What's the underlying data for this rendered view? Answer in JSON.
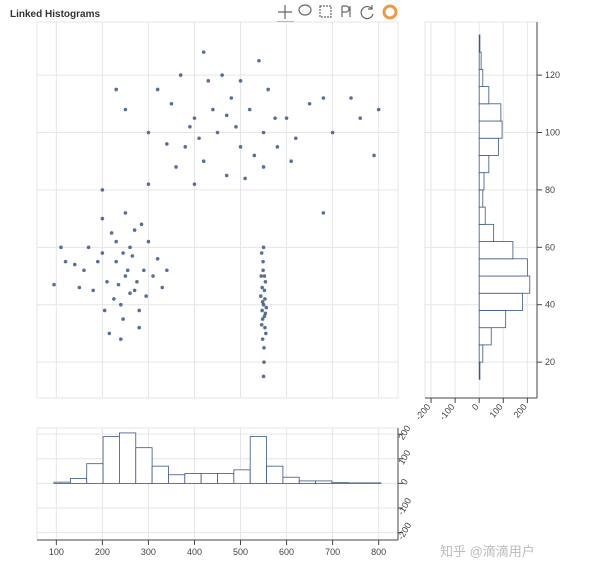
{
  "chart_data": [
    {
      "type": "scatter",
      "title": "Linked Histograms",
      "color": "#3a5785",
      "grid": true,
      "xlim": [
        58,
        842
      ],
      "ylim": [
        7.5,
        138.5
      ],
      "xticks": [
        100,
        200,
        300,
        400,
        500,
        600,
        700,
        800
      ],
      "yticks": [
        20,
        40,
        60,
        80,
        100,
        120
      ],
      "x": [
        250,
        230,
        270,
        210,
        290,
        260,
        240,
        200,
        280,
        220,
        310,
        180,
        255,
        235,
        265,
        245,
        300,
        190,
        275,
        225,
        160,
        330,
        215,
        285,
        250,
        205,
        295,
        170,
        320,
        240,
        140,
        260,
        230,
        270,
        150,
        200,
        280,
        245,
        340,
        120,
        95,
        110,
        200,
        550,
        548,
        552,
        545,
        555,
        547,
        553,
        549,
        551,
        546,
        554,
        550,
        548,
        552,
        544,
        556,
        549,
        551,
        547,
        553,
        550,
        546,
        554,
        548,
        552,
        450,
        400,
        500,
        350,
        550,
        420,
        480,
        380,
        600,
        430,
        520,
        300,
        470,
        560,
        410,
        650,
        490,
        360,
        530,
        440,
        700,
        320,
        580,
        460,
        390,
        620,
        510,
        340,
        470,
        550,
        250,
        680,
        230,
        420,
        760,
        800,
        790,
        300,
        540,
        500,
        370,
        610,
        740,
        400,
        575,
        680
      ],
      "values": [
        50,
        55,
        45,
        48,
        52,
        60,
        40,
        58,
        38,
        65,
        50,
        45,
        52,
        47,
        57,
        35,
        62,
        55,
        48,
        42,
        52,
        46,
        30,
        68,
        72,
        38,
        43,
        60,
        56,
        28,
        54,
        44,
        62,
        66,
        46,
        70,
        32,
        58,
        52,
        55,
        47,
        60,
        80,
        40,
        35,
        45,
        50,
        30,
        38,
        42,
        55,
        25,
        33,
        48,
        60,
        28,
        36,
        43,
        39,
        52,
        20,
        46,
        32,
        15,
        58,
        37,
        41,
        50,
        100,
        105,
        95,
        110,
        100,
        90,
        112,
        95,
        105,
        118,
        108,
        100,
        85,
        115,
        98,
        110,
        102,
        88,
        92,
        108,
        100,
        115,
        95,
        120,
        102,
        98,
        84,
        96,
        106,
        88,
        108,
        112,
        115,
        128,
        105,
        108,
        92,
        82,
        125,
        118,
        120,
        90,
        112,
        82,
        105,
        72
      ]
    },
    {
      "type": "histogram",
      "orientation": "vertical",
      "color": "#3a5785",
      "grid": true,
      "xlim": [
        58,
        842
      ],
      "ylim": [
        -230,
        225
      ],
      "xticks": [
        100,
        200,
        300,
        400,
        500,
        600,
        700,
        800
      ],
      "yticks": [
        -200,
        -100,
        0,
        100,
        200
      ],
      "bins": [
        95,
        130.5,
        166,
        201.5,
        237,
        272.5,
        308,
        343.5,
        379,
        414.5,
        450,
        485.5,
        521,
        556.5,
        592,
        627.5,
        663,
        698.5,
        734,
        769.5,
        805
      ],
      "values": [
        5,
        20,
        80,
        190,
        205,
        145,
        70,
        35,
        40,
        40,
        40,
        55,
        190,
        70,
        25,
        10,
        10,
        3,
        2,
        2
      ]
    },
    {
      "type": "histogram",
      "orientation": "horizontal",
      "color": "#3a5785",
      "grid": true,
      "xlim": [
        -225,
        240
      ],
      "ylim": [
        7.5,
        138.5
      ],
      "xticks": [
        -200,
        -100,
        0,
        100,
        200
      ],
      "yticks": [
        20,
        40,
        60,
        80,
        100,
        120
      ],
      "bins": [
        14,
        20,
        26,
        32,
        38,
        44,
        50,
        56,
        62,
        68,
        74,
        80,
        86,
        92,
        98,
        104,
        110,
        116,
        122,
        128,
        134
      ],
      "values": [
        3,
        15,
        50,
        110,
        180,
        210,
        200,
        140,
        60,
        25,
        15,
        20,
        40,
        80,
        95,
        90,
        40,
        15,
        8,
        3
      ]
    }
  ],
  "watermark": "知乎 @滴滴用户"
}
